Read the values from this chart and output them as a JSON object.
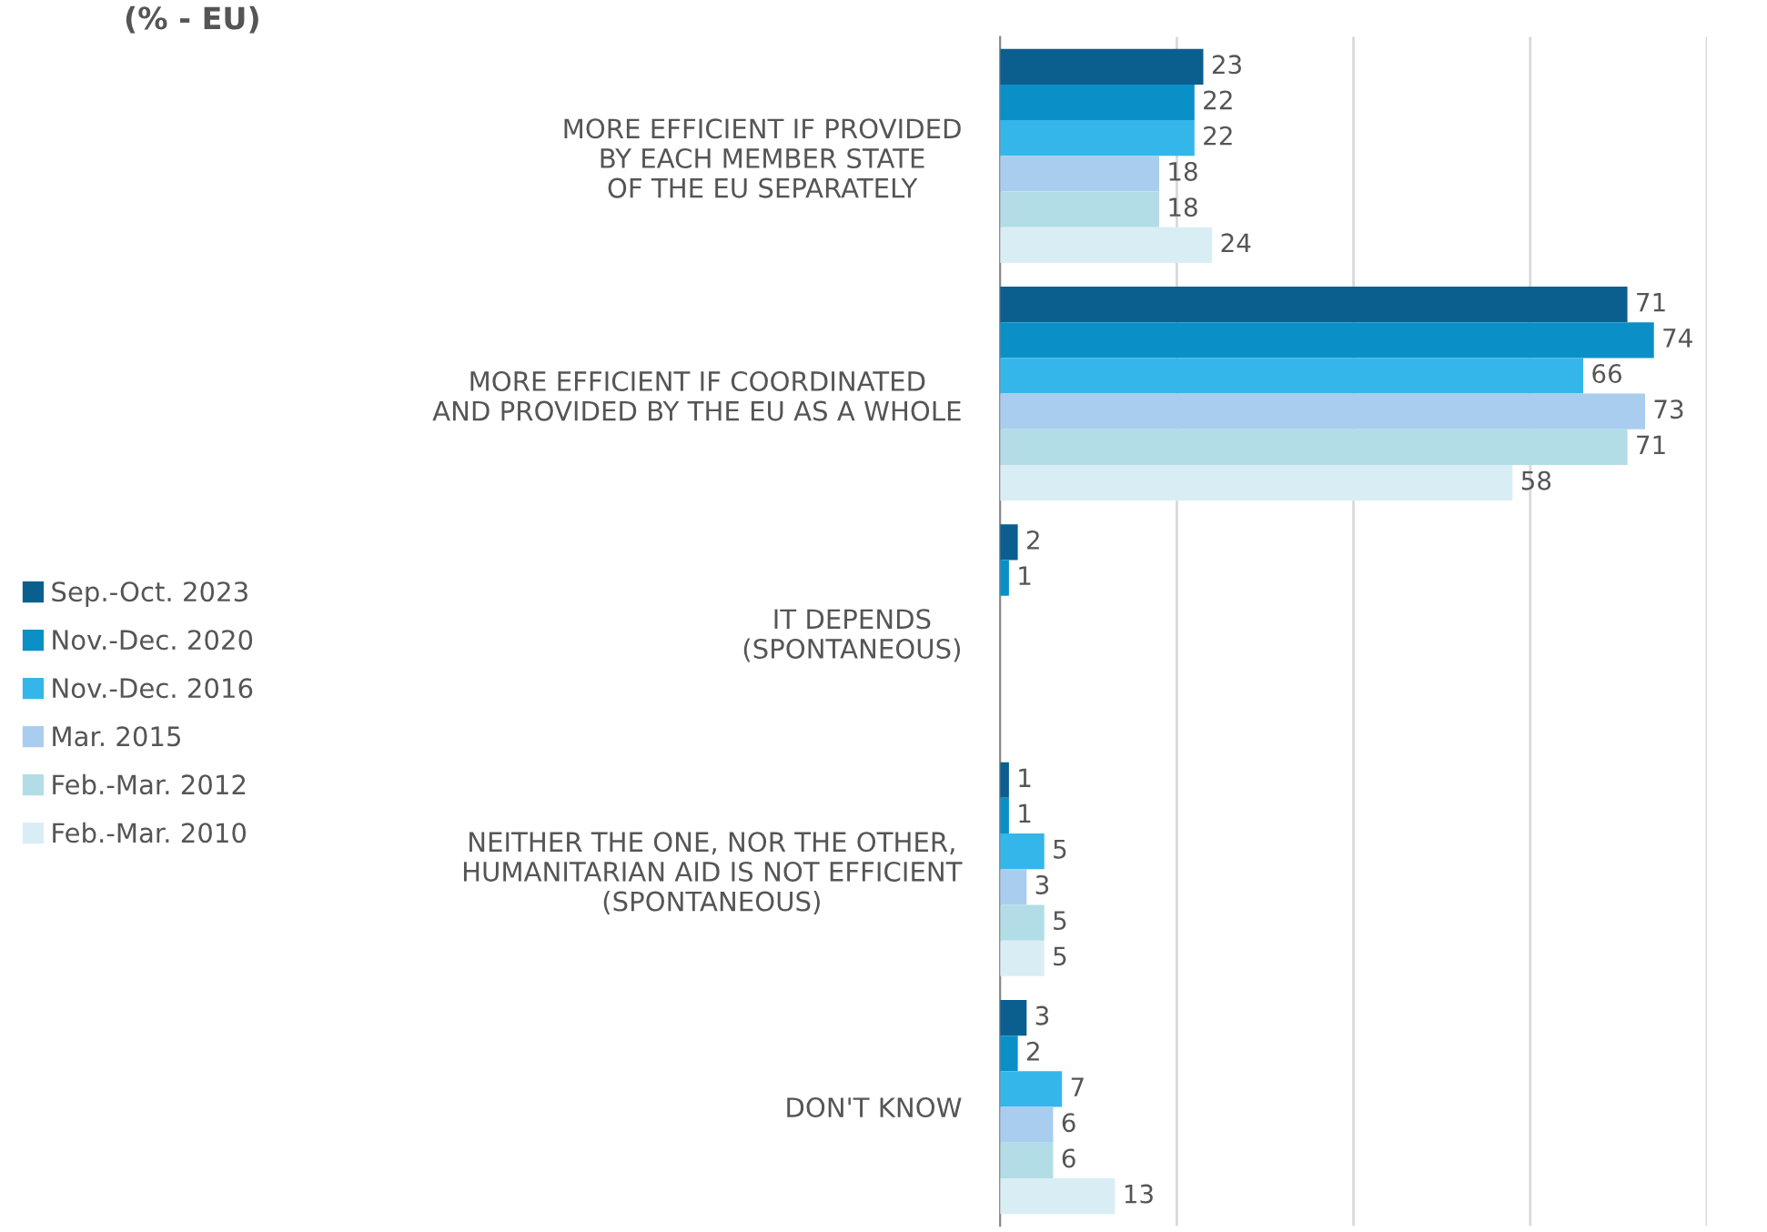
{
  "chart_data": {
    "type": "bar",
    "orientation": "horizontal",
    "title": "(% - EU)",
    "categories": [
      "MORE EFFICIENT IF PROVIDED\nBY EACH MEMBER STATE\nOF THE EU SEPARATELY",
      "MORE EFFICIENT IF COORDINATED\nAND PROVIDED BY THE EU AS A WHOLE",
      "IT DEPENDS\n(SPONTANEOUS)",
      "NEITHER THE ONE, NOR THE OTHER,\nHUMANITARIAN AID IS NOT EFFICIENT\n(SPONTANEOUS)",
      "DON'T KNOW"
    ],
    "series": [
      {
        "name": "Sep.-Oct. 2023",
        "color": "#0b5f8f",
        "values": [
          23,
          71,
          2,
          1,
          3
        ]
      },
      {
        "name": "Nov.-Dec. 2020",
        "color": "#0b8fc7",
        "values": [
          22,
          74,
          1,
          1,
          2
        ]
      },
      {
        "name": "Nov.-Dec. 2016",
        "color": "#35b6ea",
        "values": [
          22,
          66,
          null,
          5,
          7
        ]
      },
      {
        "name": "Mar. 2015",
        "color": "#a8cdef",
        "values": [
          18,
          73,
          null,
          3,
          6
        ]
      },
      {
        "name": "Feb.-Mar. 2012",
        "color": "#b2dde6",
        "values": [
          18,
          71,
          null,
          5,
          6
        ]
      },
      {
        "name": "Feb.-Mar. 2010",
        "color": "#d9eef4",
        "values": [
          24,
          58,
          null,
          5,
          13
        ]
      }
    ],
    "xlim": [
      0,
      80
    ],
    "xticks": [
      {
        "value": 20,
        "label": null
      },
      {
        "value": 40,
        "label": null
      },
      {
        "value": 60,
        "label": null
      },
      {
        "value": 80,
        "label": null
      }
    ],
    "tick_labels": "y",
    "grid": "x",
    "data_labels": true,
    "legend": "left"
  }
}
